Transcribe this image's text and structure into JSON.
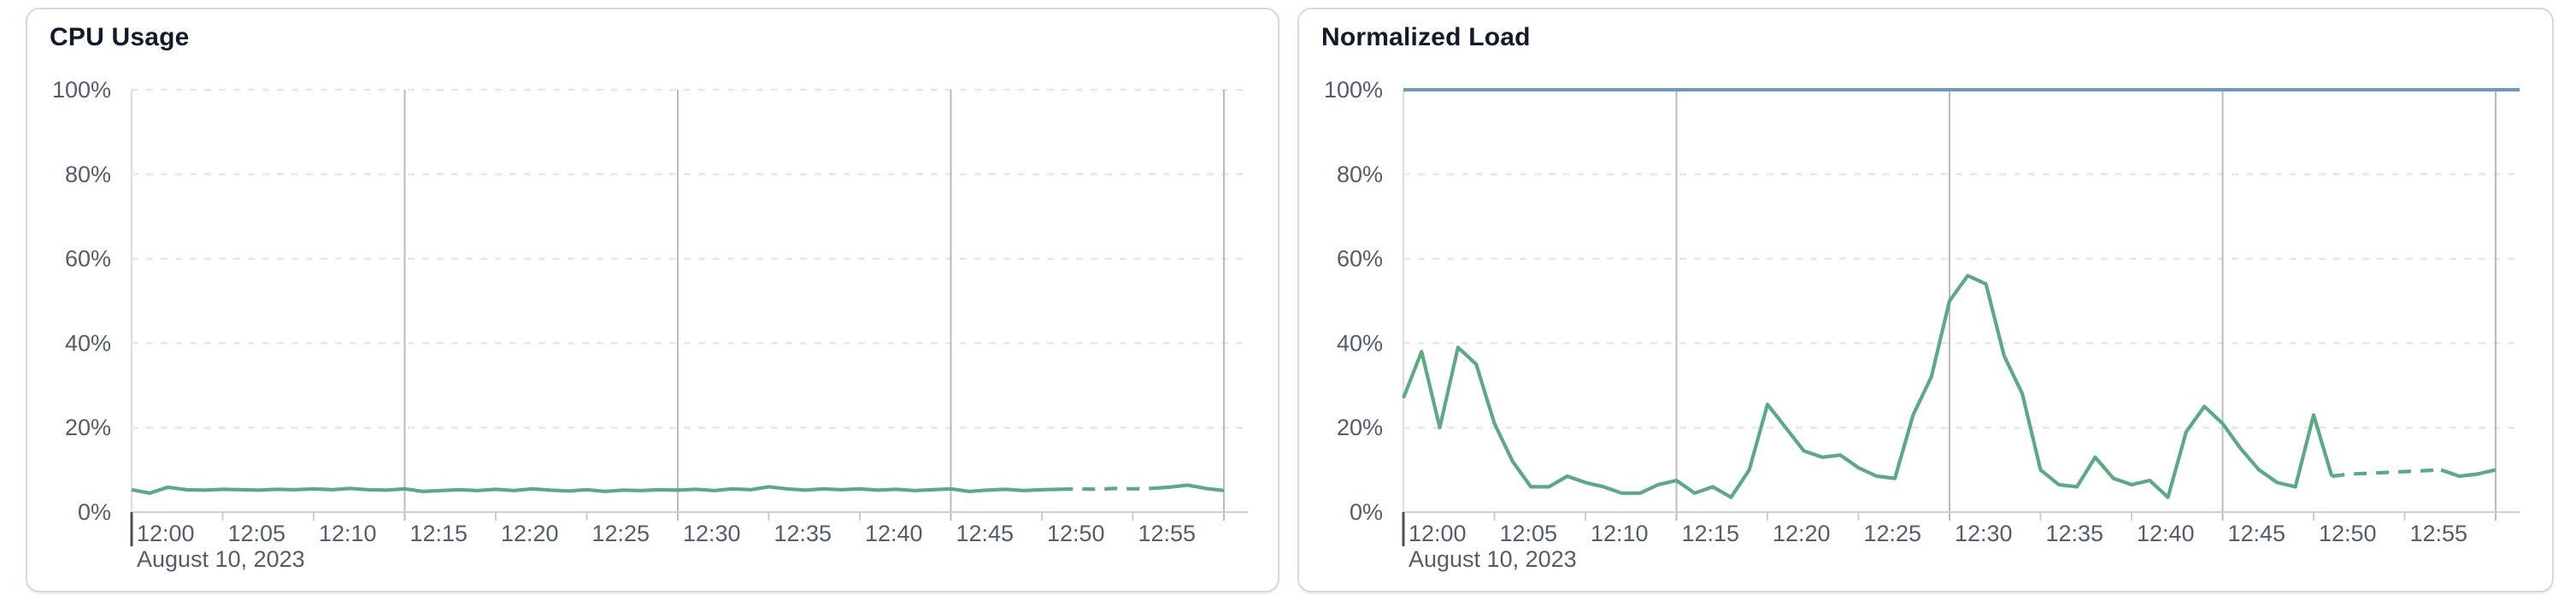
{
  "page": {
    "background": "#ffffff"
  },
  "cards": [
    {
      "title": "CPU Usage",
      "chart_index": 0
    },
    {
      "title": "Normalized Load",
      "chart_index": 1
    }
  ],
  "chart_data": [
    {
      "type": "line",
      "title": "CPU Usage",
      "xlabel": "",
      "ylabel": "",
      "ylim": [
        0,
        100
      ],
      "x_start": "12:00",
      "x_end": "13:00",
      "x_interval_minutes": 1,
      "x_tick_labels": [
        "12:00",
        "12:05",
        "12:10",
        "12:15",
        "12:20",
        "12:25",
        "12:30",
        "12:35",
        "12:40",
        "12:45",
        "12:50",
        "12:55"
      ],
      "x_date_label": "August 10, 2023",
      "y_tick_labels": [
        "0%",
        "20%",
        "40%",
        "60%",
        "80%",
        "100%"
      ],
      "grid": {
        "horizontal": "dashed",
        "vertical_every_minutes": 15,
        "top_line": "dashed-gridline"
      },
      "legend_position": "none",
      "threshold": null,
      "series": [
        {
          "name": "CPU Usage",
          "color": "#5ea885",
          "dash_start_index": 51,
          "dash_end_index": 56,
          "values": [
            5.3,
            4.5,
            5.9,
            5.3,
            5.2,
            5.4,
            5.3,
            5.2,
            5.4,
            5.3,
            5.5,
            5.3,
            5.6,
            5.3,
            5.2,
            5.5,
            4.9,
            5.1,
            5.3,
            5.1,
            5.4,
            5.1,
            5.5,
            5.2,
            5.0,
            5.3,
            4.9,
            5.2,
            5.1,
            5.3,
            5.2,
            5.4,
            5.1,
            5.5,
            5.3,
            6.0,
            5.5,
            5.2,
            5.5,
            5.3,
            5.5,
            5.2,
            5.4,
            5.1,
            5.3,
            5.5,
            4.9,
            5.2,
            5.4,
            5.1,
            5.3,
            5.4,
            5.5,
            5.4,
            5.6,
            5.5,
            5.6,
            5.9,
            6.4,
            5.6,
            5.1
          ]
        }
      ]
    },
    {
      "type": "line",
      "title": "Normalized Load",
      "xlabel": "",
      "ylabel": "",
      "ylim": [
        0,
        100
      ],
      "x_start": "12:00",
      "x_end": "13:00",
      "x_interval_minutes": 1,
      "x_tick_labels": [
        "12:00",
        "12:05",
        "12:10",
        "12:15",
        "12:20",
        "12:25",
        "12:30",
        "12:35",
        "12:40",
        "12:45",
        "12:50",
        "12:55"
      ],
      "x_date_label": "August 10, 2023",
      "y_tick_labels": [
        "0%",
        "20%",
        "40%",
        "60%",
        "80%",
        "100%"
      ],
      "grid": {
        "horizontal": "dashed",
        "vertical_every_minutes": 15,
        "top_line": "threshold"
      },
      "legend_position": "none",
      "threshold": {
        "value": 100,
        "color": "#7496bd"
      },
      "series": [
        {
          "name": "Normalized Load",
          "color": "#5ea885",
          "dash_start_index": 51,
          "dash_end_index": 57,
          "values": [
            27,
            38,
            20,
            39,
            35,
            21,
            12,
            6,
            6,
            8.5,
            7,
            6,
            4.5,
            4.5,
            6.5,
            7.5,
            4.5,
            6,
            3.5,
            10,
            25.5,
            20,
            14.5,
            13,
            13.5,
            10.5,
            8.5,
            8,
            23,
            32,
            50,
            56,
            54,
            37,
            28,
            10,
            6.5,
            6,
            13,
            8,
            6.5,
            7.5,
            3.5,
            19,
            25,
            21,
            15,
            10,
            7,
            6,
            23,
            8.5,
            9,
            9.2,
            9.4,
            9.6,
            9.8,
            10,
            8.5,
            9,
            10
          ]
        }
      ]
    }
  ],
  "style": {
    "axis_label_color": "#555d68",
    "h_gridline_color": "#e4e7ef",
    "v_gridline_color": "#b7bcc3",
    "baseline_color": "#cdd1d7",
    "left_border_color": "#dadde2",
    "tick_color": "#c9cdd3",
    "origin_tick_color": "#49505a"
  }
}
